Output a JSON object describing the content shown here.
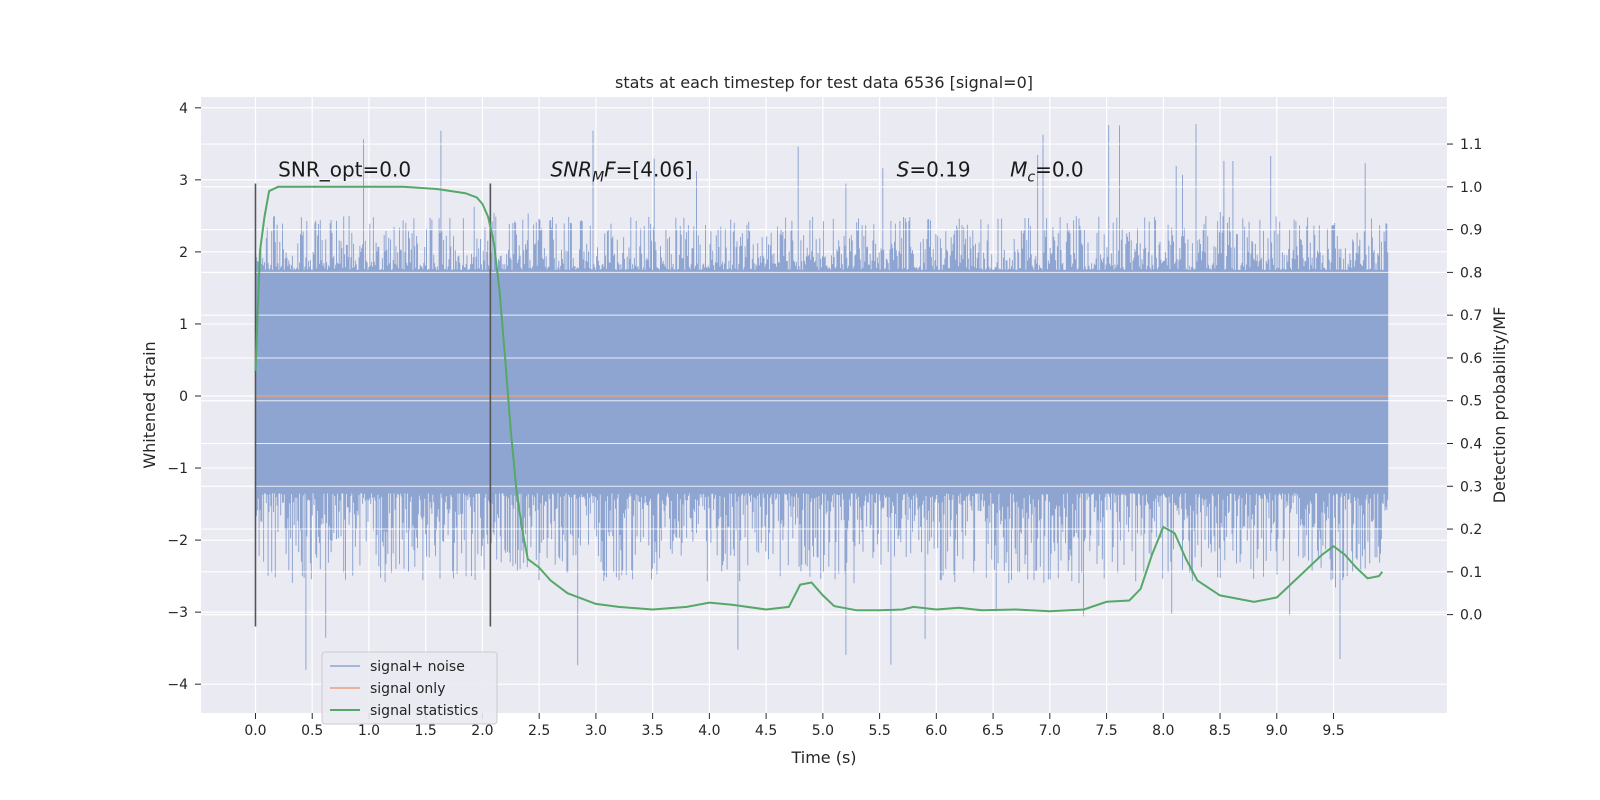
{
  "chart_data": {
    "type": "line",
    "title": "stats at each timestep for test data 6536 [signal=0]",
    "xlabel": "Time (s)",
    "ylabel": "Whitened strain",
    "ylabel_right": "Detection probability/MF",
    "xlim": [
      -0.48,
      10.5
    ],
    "ylim": [
      -4.4,
      4.15
    ],
    "ylim_right": [
      -0.23,
      1.21
    ],
    "xticks": [
      "0.0",
      "0.5",
      "1.0",
      "1.5",
      "2.0",
      "2.5",
      "3.0",
      "3.5",
      "4.0",
      "4.5",
      "5.0",
      "5.5",
      "6.0",
      "6.5",
      "7.0",
      "7.5",
      "8.0",
      "8.5",
      "9.0",
      "9.5"
    ],
    "yticks_left": [
      "4",
      "3",
      "2",
      "1",
      "0",
      "−1",
      "−2",
      "−3",
      "−4"
    ],
    "yticks_right": [
      "1.1",
      "1.0",
      "0.9",
      "0.8",
      "0.7",
      "0.6",
      "0.5",
      "0.4",
      "0.3",
      "0.2",
      "0.1",
      "0.0"
    ],
    "grid": true,
    "legend_position": "lower-left",
    "noise_envelope": {
      "t_start": 0.0,
      "t_end": 9.98,
      "typical_max": 2.1,
      "typical_min": -2.0,
      "extreme_max": 3.8,
      "extreme_min": -3.85
    },
    "vertical_markers": [
      {
        "x": 0.0,
        "y_min": -3.2,
        "y_max": 2.95
      },
      {
        "x": 2.07,
        "y_min": -3.2,
        "y_max": 2.95
      }
    ],
    "annotations": [
      {
        "text": "SNR_opt=0.0",
        "x": 0.2,
        "y": 3.05
      },
      {
        "text": "SNR_MF=[4.06]",
        "x": 2.6,
        "y": 3.05
      },
      {
        "text": "S=0.19",
        "x": 5.65,
        "y": 3.05
      },
      {
        "text": "M_c=0.0",
        "x": 6.65,
        "y": 3.05
      }
    ],
    "series": [
      {
        "name": "signal+ noise",
        "axis": "left",
        "color": "#8fa5d1",
        "style": "dense-noise"
      },
      {
        "name": "signal only",
        "axis": "left",
        "color": "#e8a07e",
        "x": [
          0.0,
          9.98
        ],
        "y": [
          0.0,
          0.0
        ]
      },
      {
        "name": "signal statistics",
        "axis": "right",
        "color": "#55a868",
        "x": [
          0.0,
          0.04,
          0.08,
          0.12,
          0.2,
          0.3,
          0.5,
          0.8,
          1.0,
          1.3,
          1.6,
          1.85,
          1.95,
          2.0,
          2.05,
          2.1,
          2.15,
          2.2,
          2.25,
          2.3,
          2.35,
          2.4,
          2.5,
          2.6,
          2.75,
          3.0,
          3.2,
          3.5,
          3.8,
          4.0,
          4.2,
          4.5,
          4.7,
          4.8,
          4.9,
          5.0,
          5.1,
          5.3,
          5.5,
          5.7,
          5.8,
          6.0,
          6.2,
          6.4,
          6.7,
          7.0,
          7.3,
          7.5,
          7.7,
          7.8,
          7.9,
          8.0,
          8.1,
          8.2,
          8.3,
          8.5,
          8.8,
          9.0,
          9.2,
          9.4,
          9.5,
          9.6,
          9.7,
          9.8,
          9.9,
          9.93
        ],
        "y": [
          0.57,
          0.85,
          0.93,
          0.99,
          1.0,
          1.0,
          1.0,
          1.0,
          1.0,
          1.0,
          0.995,
          0.985,
          0.975,
          0.96,
          0.93,
          0.87,
          0.76,
          0.6,
          0.43,
          0.29,
          0.2,
          0.13,
          0.11,
          0.08,
          0.05,
          0.025,
          0.018,
          0.012,
          0.018,
          0.028,
          0.023,
          0.012,
          0.018,
          0.07,
          0.075,
          0.045,
          0.02,
          0.01,
          0.01,
          0.012,
          0.018,
          0.012,
          0.016,
          0.01,
          0.012,
          0.008,
          0.012,
          0.03,
          0.033,
          0.06,
          0.14,
          0.205,
          0.19,
          0.13,
          0.08,
          0.045,
          0.03,
          0.04,
          0.09,
          0.14,
          0.16,
          0.14,
          0.11,
          0.085,
          0.09,
          0.1
        ]
      }
    ]
  }
}
